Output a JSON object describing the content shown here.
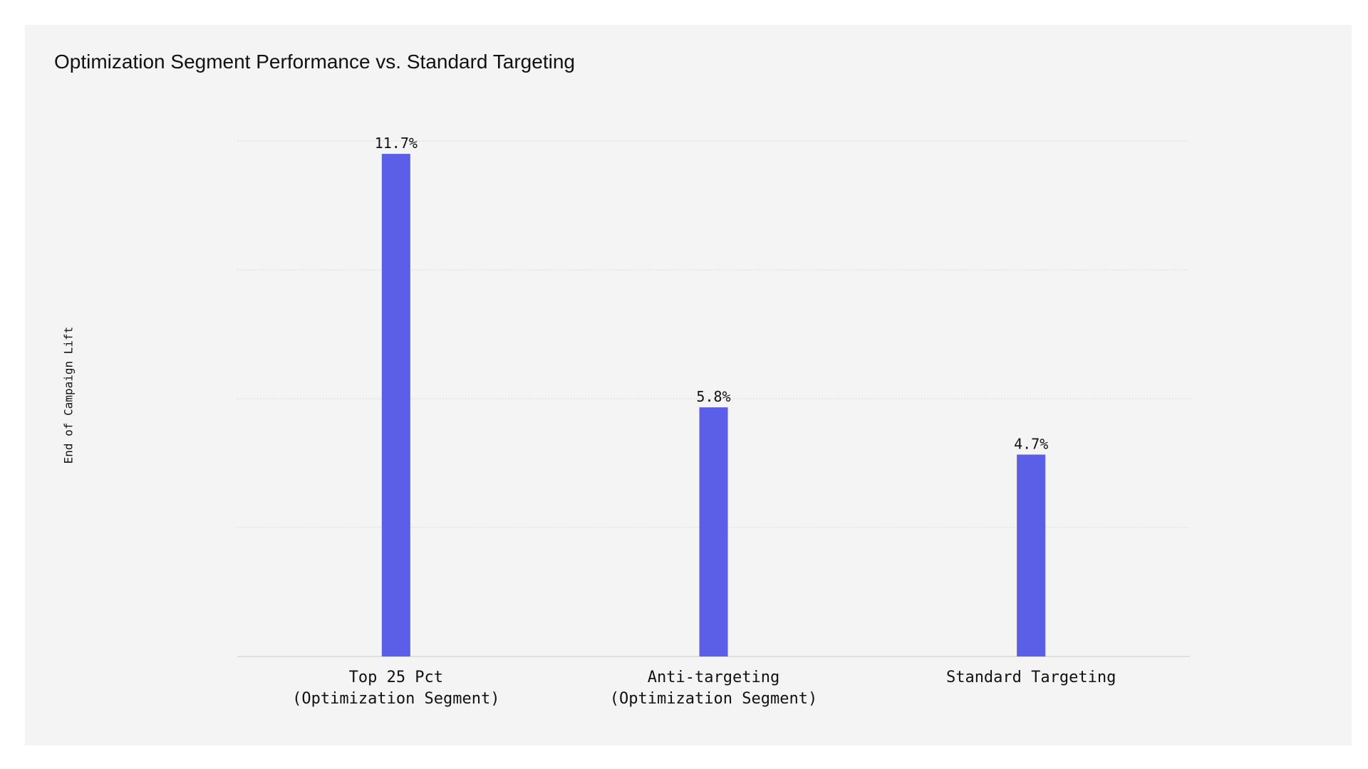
{
  "chart_data": {
    "type": "bar",
    "title": "Optimization Segment Performance vs. Standard Targeting",
    "xlabel": "",
    "ylabel": "End of Campaign Lift",
    "categories": [
      [
        "Top 25 Pct",
        "(Optimization Segment)"
      ],
      [
        "Anti-targeting",
        "(Optimization Segment)"
      ],
      [
        "Standard Targeting"
      ]
    ],
    "values": [
      11.7,
      5.8,
      4.7
    ],
    "value_labels": [
      "11.7%",
      "5.8%",
      "4.7%"
    ],
    "ylim": [
      0,
      12
    ],
    "grid": true,
    "bar_color": "#5b5ee6",
    "grid_color": "#d9d9d9",
    "background_color": "#f4f4f4"
  }
}
